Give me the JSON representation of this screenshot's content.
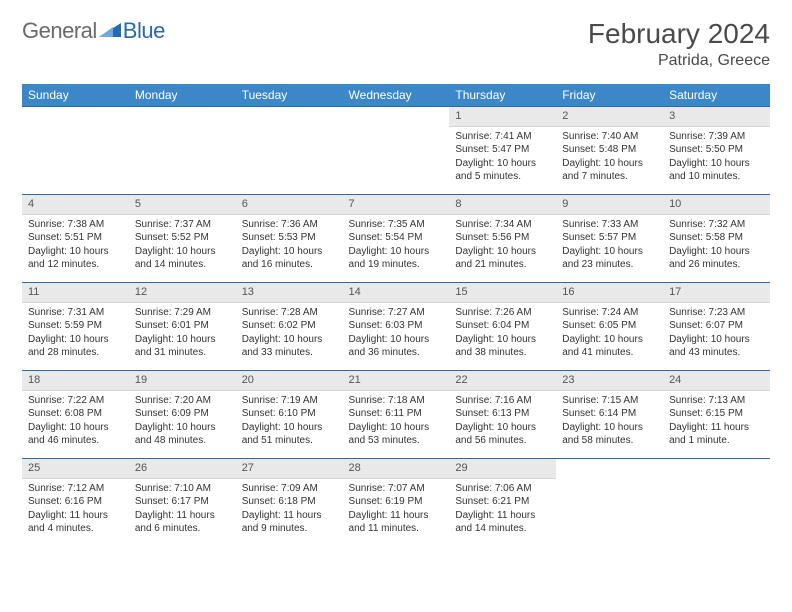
{
  "logo": {
    "text1": "General",
    "text2": "Blue"
  },
  "title": "February 2024",
  "location": "Patrida, Greece",
  "weekdays": [
    "Sunday",
    "Monday",
    "Tuesday",
    "Wednesday",
    "Thursday",
    "Friday",
    "Saturday"
  ],
  "colors": {
    "header_bg": "#3b87c8",
    "header_text": "#ffffff",
    "rule": "#2969b0",
    "daynum_bg": "#e9e9e9",
    "text": "#333333"
  },
  "rows": [
    [
      {
        "blank": true
      },
      {
        "blank": true
      },
      {
        "blank": true
      },
      {
        "blank": true
      },
      {
        "day": "1",
        "sunrise": "Sunrise: 7:41 AM",
        "sunset": "Sunset: 5:47 PM",
        "daylight": "Daylight: 10 hours and 5 minutes."
      },
      {
        "day": "2",
        "sunrise": "Sunrise: 7:40 AM",
        "sunset": "Sunset: 5:48 PM",
        "daylight": "Daylight: 10 hours and 7 minutes."
      },
      {
        "day": "3",
        "sunrise": "Sunrise: 7:39 AM",
        "sunset": "Sunset: 5:50 PM",
        "daylight": "Daylight: 10 hours and 10 minutes."
      }
    ],
    [
      {
        "day": "4",
        "sunrise": "Sunrise: 7:38 AM",
        "sunset": "Sunset: 5:51 PM",
        "daylight": "Daylight: 10 hours and 12 minutes."
      },
      {
        "day": "5",
        "sunrise": "Sunrise: 7:37 AM",
        "sunset": "Sunset: 5:52 PM",
        "daylight": "Daylight: 10 hours and 14 minutes."
      },
      {
        "day": "6",
        "sunrise": "Sunrise: 7:36 AM",
        "sunset": "Sunset: 5:53 PM",
        "daylight": "Daylight: 10 hours and 16 minutes."
      },
      {
        "day": "7",
        "sunrise": "Sunrise: 7:35 AM",
        "sunset": "Sunset: 5:54 PM",
        "daylight": "Daylight: 10 hours and 19 minutes."
      },
      {
        "day": "8",
        "sunrise": "Sunrise: 7:34 AM",
        "sunset": "Sunset: 5:56 PM",
        "daylight": "Daylight: 10 hours and 21 minutes."
      },
      {
        "day": "9",
        "sunrise": "Sunrise: 7:33 AM",
        "sunset": "Sunset: 5:57 PM",
        "daylight": "Daylight: 10 hours and 23 minutes."
      },
      {
        "day": "10",
        "sunrise": "Sunrise: 7:32 AM",
        "sunset": "Sunset: 5:58 PM",
        "daylight": "Daylight: 10 hours and 26 minutes."
      }
    ],
    [
      {
        "day": "11",
        "sunrise": "Sunrise: 7:31 AM",
        "sunset": "Sunset: 5:59 PM",
        "daylight": "Daylight: 10 hours and 28 minutes."
      },
      {
        "day": "12",
        "sunrise": "Sunrise: 7:29 AM",
        "sunset": "Sunset: 6:01 PM",
        "daylight": "Daylight: 10 hours and 31 minutes."
      },
      {
        "day": "13",
        "sunrise": "Sunrise: 7:28 AM",
        "sunset": "Sunset: 6:02 PM",
        "daylight": "Daylight: 10 hours and 33 minutes."
      },
      {
        "day": "14",
        "sunrise": "Sunrise: 7:27 AM",
        "sunset": "Sunset: 6:03 PM",
        "daylight": "Daylight: 10 hours and 36 minutes."
      },
      {
        "day": "15",
        "sunrise": "Sunrise: 7:26 AM",
        "sunset": "Sunset: 6:04 PM",
        "daylight": "Daylight: 10 hours and 38 minutes."
      },
      {
        "day": "16",
        "sunrise": "Sunrise: 7:24 AM",
        "sunset": "Sunset: 6:05 PM",
        "daylight": "Daylight: 10 hours and 41 minutes."
      },
      {
        "day": "17",
        "sunrise": "Sunrise: 7:23 AM",
        "sunset": "Sunset: 6:07 PM",
        "daylight": "Daylight: 10 hours and 43 minutes."
      }
    ],
    [
      {
        "day": "18",
        "sunrise": "Sunrise: 7:22 AM",
        "sunset": "Sunset: 6:08 PM",
        "daylight": "Daylight: 10 hours and 46 minutes."
      },
      {
        "day": "19",
        "sunrise": "Sunrise: 7:20 AM",
        "sunset": "Sunset: 6:09 PM",
        "daylight": "Daylight: 10 hours and 48 minutes."
      },
      {
        "day": "20",
        "sunrise": "Sunrise: 7:19 AM",
        "sunset": "Sunset: 6:10 PM",
        "daylight": "Daylight: 10 hours and 51 minutes."
      },
      {
        "day": "21",
        "sunrise": "Sunrise: 7:18 AM",
        "sunset": "Sunset: 6:11 PM",
        "daylight": "Daylight: 10 hours and 53 minutes."
      },
      {
        "day": "22",
        "sunrise": "Sunrise: 7:16 AM",
        "sunset": "Sunset: 6:13 PM",
        "daylight": "Daylight: 10 hours and 56 minutes."
      },
      {
        "day": "23",
        "sunrise": "Sunrise: 7:15 AM",
        "sunset": "Sunset: 6:14 PM",
        "daylight": "Daylight: 10 hours and 58 minutes."
      },
      {
        "day": "24",
        "sunrise": "Sunrise: 7:13 AM",
        "sunset": "Sunset: 6:15 PM",
        "daylight": "Daylight: 11 hours and 1 minute."
      }
    ],
    [
      {
        "day": "25",
        "sunrise": "Sunrise: 7:12 AM",
        "sunset": "Sunset: 6:16 PM",
        "daylight": "Daylight: 11 hours and 4 minutes."
      },
      {
        "day": "26",
        "sunrise": "Sunrise: 7:10 AM",
        "sunset": "Sunset: 6:17 PM",
        "daylight": "Daylight: 11 hours and 6 minutes."
      },
      {
        "day": "27",
        "sunrise": "Sunrise: 7:09 AM",
        "sunset": "Sunset: 6:18 PM",
        "daylight": "Daylight: 11 hours and 9 minutes."
      },
      {
        "day": "28",
        "sunrise": "Sunrise: 7:07 AM",
        "sunset": "Sunset: 6:19 PM",
        "daylight": "Daylight: 11 hours and 11 minutes."
      },
      {
        "day": "29",
        "sunrise": "Sunrise: 7:06 AM",
        "sunset": "Sunset: 6:21 PM",
        "daylight": "Daylight: 11 hours and 14 minutes."
      },
      {
        "blank": true
      },
      {
        "blank": true
      }
    ]
  ]
}
